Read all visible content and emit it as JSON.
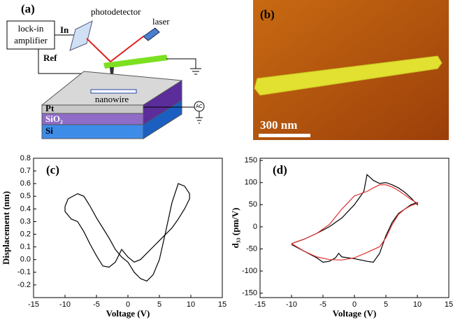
{
  "diagram": {
    "label": "(a)",
    "amplifier": [
      "lock-in",
      "amplifier"
    ],
    "input": "In",
    "reference": "Ref",
    "detector": "photodetector",
    "laser": "laser",
    "sample": "nanowire",
    "source": "AC",
    "layers": [
      "Pt",
      "SiO₂",
      "Si"
    ]
  },
  "image": {
    "label": "(b)",
    "scale_bar": "300 nm"
  },
  "chart_data": [
    {
      "type": "line",
      "label": "(c)",
      "xlabel": "Voltage (V)",
      "ylabel": "Displacement (nm)",
      "xlim": [
        -15,
        15
      ],
      "xticks": [
        -15,
        -10,
        -5,
        0,
        5,
        10,
        15
      ],
      "ylim": [
        -0.3,
        0.8
      ],
      "yticks": [
        -0.2,
        -0.1,
        {
          "value": 0,
          "label": "0.0"
        },
        0.1,
        0.2,
        0.3,
        0.4,
        0.5,
        0.6,
        0.7,
        0.8
      ],
      "series": [
        {
          "color": "#000000",
          "x": [
            -10,
            -9.5,
            -8,
            -7,
            -6,
            -5,
            -4,
            -3,
            -2,
            -1,
            0,
            1,
            2,
            3,
            4,
            5,
            6,
            7,
            8,
            9,
            9.8,
            9.8,
            9,
            8,
            7,
            6,
            5,
            4,
            3,
            2,
            1,
            0,
            -1,
            -2,
            -3,
            -4,
            -5,
            -6,
            -7,
            -8,
            -9,
            -10,
            -10
          ],
          "values": [
            0.42,
            0.48,
            0.52,
            0.5,
            0.42,
            0.33,
            0.25,
            0.17,
            0.08,
            0.02,
            -0.02,
            -0.1,
            -0.15,
            -0.17,
            -0.12,
            0.0,
            0.22,
            0.45,
            0.6,
            0.58,
            0.52,
            0.48,
            0.4,
            0.32,
            0.25,
            0.2,
            0.15,
            0.1,
            0.05,
            0.0,
            -0.02,
            0.02,
            0.08,
            -0.02,
            -0.06,
            -0.05,
            0.03,
            0.12,
            0.22,
            0.3,
            0.32,
            0.38,
            0.42
          ]
        }
      ]
    },
    {
      "type": "line",
      "label": "(d)",
      "xlabel": "Voltage (V)",
      "ylabel": "d₃₃ (pm/V)",
      "xlim": [
        -15,
        15
      ],
      "xticks": [
        -15,
        -10,
        -5,
        0,
        5,
        10,
        15
      ],
      "ylim": [
        -160,
        155
      ],
      "yticks": [
        -150,
        -100,
        -50,
        0,
        50,
        100,
        150
      ],
      "series": [
        {
          "color": "#000000",
          "x": [
            -10,
            -8,
            -6,
            -5,
            -4,
            -3,
            -2.5,
            -2,
            0,
            2,
            3,
            4,
            5,
            6,
            7,
            8,
            9,
            10,
            10,
            9,
            8,
            7,
            6,
            5,
            4,
            3,
            2,
            1.5,
            0,
            -2,
            -4,
            -6,
            -8,
            -10
          ],
          "values": [
            -40,
            -55,
            -70,
            -80,
            -78,
            -70,
            -60,
            -68,
            -72,
            -78,
            -80,
            -60,
            -20,
            10,
            30,
            40,
            50,
            55,
            50,
            65,
            78,
            88,
            95,
            100,
            98,
            105,
            118,
            80,
            50,
            20,
            0,
            -15,
            -28,
            -38
          ]
        },
        {
          "color": "#e03030",
          "x": [
            -10,
            -8,
            -6,
            -4,
            -2,
            0,
            2,
            4,
            5,
            6,
            7,
            8,
            9,
            10,
            9,
            8,
            7,
            6,
            5,
            4,
            3,
            2,
            0,
            -2,
            -4,
            -6,
            -8,
            -10
          ],
          "values": [
            -38,
            -55,
            -68,
            -74,
            -75,
            -70,
            -58,
            -45,
            -25,
            5,
            28,
            40,
            48,
            53,
            62,
            72,
            82,
            90,
            95,
            95,
            88,
            80,
            70,
            40,
            5,
            -15,
            -28,
            -38
          ]
        }
      ]
    }
  ]
}
